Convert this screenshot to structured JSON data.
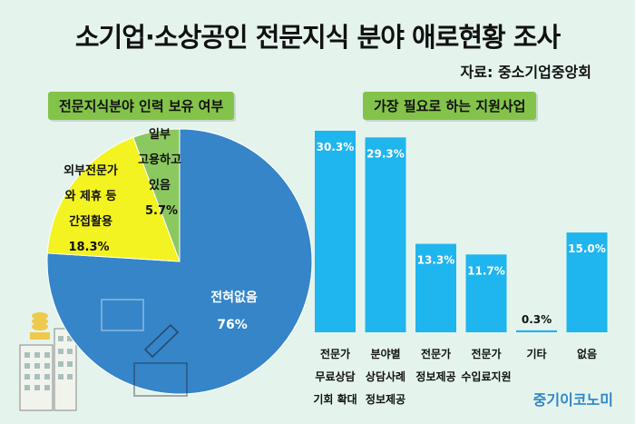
{
  "title": "소기업·소상공인 전문지식 분야 애로현황 조사",
  "source": "자료: 중소기업중앙회",
  "brand": "중기이코노미",
  "colors": {
    "background": "#e4f4ec",
    "label_bg": "#84c34a",
    "pie_blue": "#3585c8",
    "pie_yellow": "#f3f321",
    "pie_green": "#8cc860",
    "bar": "#1fb5ef"
  },
  "chart_data": [
    {
      "type": "pie",
      "title": "전문지식분야 인력 보유 여부",
      "slices": [
        {
          "label": "전혀없음",
          "value": 76.0,
          "value_label": "76%",
          "color": "#3585c8"
        },
        {
          "label": "외부전문가 와 제휴 등 간접활용",
          "label_lines": [
            "외부전문가",
            "와 제휴 등",
            "간접활용"
          ],
          "value": 18.3,
          "value_label": "18.3%",
          "color": "#f3f321"
        },
        {
          "label": "일부 고용하고 있음",
          "label_lines": [
            "일부",
            "고용하고",
            "있음"
          ],
          "value": 5.7,
          "value_label": "5.7%",
          "color": "#8cc860"
        }
      ]
    },
    {
      "type": "bar",
      "title": "가장 필요로 하는 지원사업",
      "categories": [
        {
          "label": "전문가 무료상담 기회 확대",
          "lines": [
            "전문가",
            "무료상담",
            "기회 확대"
          ]
        },
        {
          "label": "분야별 상담사례 정보제공",
          "lines": [
            "분야별",
            "상담사례",
            "정보제공"
          ]
        },
        {
          "label": "전문가 정보제공",
          "lines": [
            "전문가",
            "정보제공"
          ]
        },
        {
          "label": "전문가 수입료지원",
          "lines": [
            "전문가",
            "수입료지원"
          ]
        },
        {
          "label": "기타",
          "lines": [
            "기타"
          ]
        },
        {
          "label": "없음",
          "lines": [
            "없음"
          ]
        }
      ],
      "values": [
        30.3,
        29.3,
        13.3,
        11.7,
        0.3,
        15.0
      ],
      "value_labels": [
        "30.3%",
        "29.3%",
        "13.3%",
        "11.7%",
        "0.3%",
        "15.0%"
      ],
      "ylim": [
        0,
        32
      ]
    }
  ]
}
